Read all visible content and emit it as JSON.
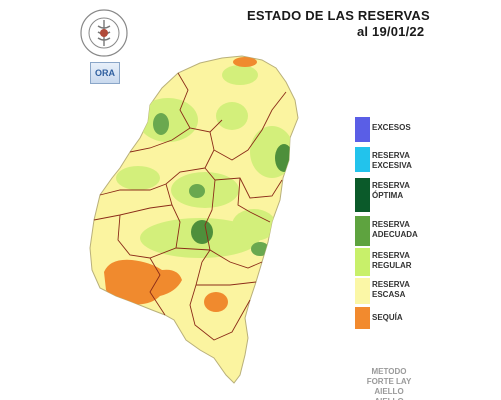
{
  "title": "ESTADO DE LAS RESERVAS",
  "date": "al 19/01/22",
  "logos": {
    "seal_text": "BOLSA DE CEREALES DE ENTRE RIOS",
    "ora_text": "ORA"
  },
  "legend": [
    {
      "label": "EXCESOS",
      "color": "#5a5ee6"
    },
    {
      "label": "RESERVA\nEXCESIVA",
      "color": "#22c3ec"
    },
    {
      "label": "RESERVA\nÓPTIMA",
      "color": "#0b5a2a"
    },
    {
      "label": "RESERVA\nADECUADA",
      "color": "#5ea33f"
    },
    {
      "label": "RESERVA\nREGULAR",
      "color": "#c8f06a"
    },
    {
      "label": "RESERVA\nESCASA",
      "color": "#fbf7a6"
    },
    {
      "label": "SEQUÍA",
      "color": "#f28a2e"
    }
  ],
  "method_text": "METODO\nFORTE LAY\nAIELLO\nAIELLO",
  "map": {
    "region": "Entre Ríos",
    "colors": {
      "escasa": "#fbf4a0",
      "regular": "#d3ef7b",
      "adecuada": "#6aa84f",
      "sequia": "#f08a2e",
      "border": "#8b2b18"
    }
  }
}
